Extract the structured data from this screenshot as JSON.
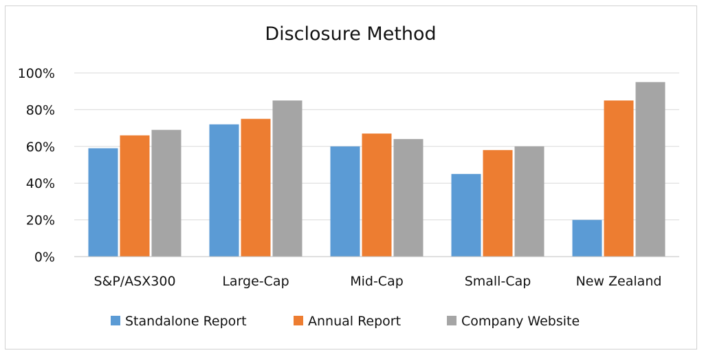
{
  "chart_data": {
    "type": "bar",
    "title": "Disclosure Method",
    "categories": [
      "S&P/ASX300",
      "Large-Cap",
      "Mid-Cap",
      "Small-Cap",
      "New Zealand"
    ],
    "series": [
      {
        "name": "Standalone Report",
        "color": "#5b9bd5",
        "values": [
          0.59,
          0.72,
          0.6,
          0.45,
          0.2
        ]
      },
      {
        "name": "Annual Report",
        "color": "#ed7d31",
        "values": [
          0.66,
          0.75,
          0.67,
          0.58,
          0.85
        ]
      },
      {
        "name": "Company Website",
        "color": "#a5a5a5",
        "values": [
          0.69,
          0.85,
          0.64,
          0.6,
          0.95
        ]
      }
    ],
    "yticks": [
      "0%",
      "20%",
      "40%",
      "60%",
      "80%",
      "100%"
    ],
    "ylim": [
      0,
      1
    ],
    "grid": true,
    "legend": "bottom"
  }
}
